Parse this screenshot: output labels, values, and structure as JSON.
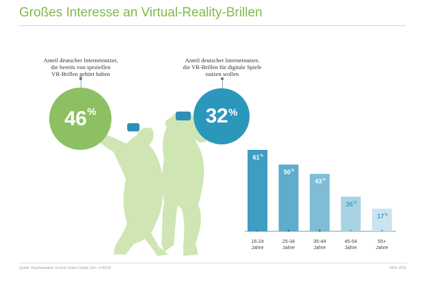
{
  "title": "Großes Interesse an Virtual-Reality-Brillen",
  "callout_left": {
    "lines": [
      "Anteil deutscher Internetnutzer,",
      "die bereits von speziellen",
      "VR-Brillen gehört haben"
    ],
    "value": "46",
    "unit": "%",
    "color": "#8cc063"
  },
  "callout_right": {
    "lines": [
      "Anteil deutscher Internetnutzer,",
      "die VR-Brillen für digitale Spiele",
      "nutzen wollen"
    ],
    "value": "32",
    "unit": "%",
    "color": "#2b97bb"
  },
  "figure_color": "#cfe6b4",
  "source": "Quelle: Repräsentative YouGov Online-Studie (18+; n=2023)",
  "copyright": "©BIU 2016",
  "chart_data": {
    "type": "bar",
    "categories": [
      "16-24 Jahre",
      "25-34 Jahre",
      "35-44 Jahre",
      "45-54 Jahre",
      "55+ Jahre"
    ],
    "category_lines": [
      [
        "16-24",
        "Jahre"
      ],
      [
        "25-34",
        "Jahre"
      ],
      [
        "35-44",
        "Jahre"
      ],
      [
        "45-54",
        "Jahre"
      ],
      [
        "55+",
        "Jahre"
      ]
    ],
    "values": [
      61,
      50,
      43,
      26,
      17
    ],
    "value_suffix": "%",
    "ylim": [
      0,
      61
    ],
    "grid": false,
    "bar_colors": [
      "#3d9dc2",
      "#5faccd",
      "#7fbcd6",
      "#a8d3e3",
      "#c9e4ef"
    ],
    "label_colors": [
      "#ffffff",
      "#ffffff",
      "#ffffff",
      "#3d9dc2",
      "#3d9dc2"
    ]
  }
}
